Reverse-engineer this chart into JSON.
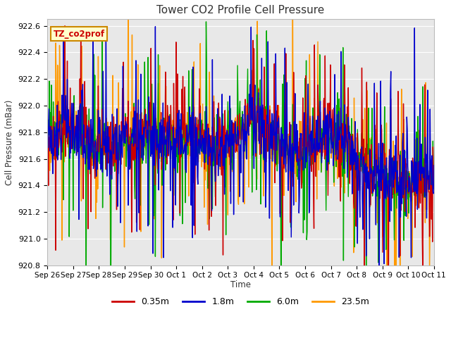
{
  "title": "Tower CO2 Profile Cell Pressure",
  "ylabel": "Cell Pressure (mBar)",
  "xlabel": "Time",
  "ylim": [
    920.8,
    922.65
  ],
  "yticks": [
    920.8,
    921.0,
    921.2,
    921.4,
    921.6,
    921.8,
    922.0,
    922.2,
    922.4,
    922.6
  ],
  "series_labels": [
    "0.35m",
    "1.8m",
    "6.0m",
    "23.5m"
  ],
  "series_colors": [
    "#cc0000",
    "#0000cc",
    "#00aa00",
    "#ff9900"
  ],
  "annotation_text": "TZ_co2prof",
  "annotation_box_color": "#ffffcc",
  "annotation_border_color": "#cc8800",
  "plot_bg_color": "#e8e8e8",
  "fig_bg_color": "#ffffff",
  "grid_color": "#ffffff",
  "tick_labels": [
    "Sep 26",
    "Sep 27",
    "Sep 28",
    "Sep 29",
    "Sep 30",
    "Oct 1",
    "Oct 2",
    "Oct 3",
    "Oct 4",
    "Oct 5",
    "Oct 6",
    "Oct 7",
    "Oct 8",
    "Oct 9",
    "Oct 10",
    "Oct 11"
  ],
  "n_points": 800,
  "seed": 42,
  "base_mean": 921.7,
  "n_days": 15
}
